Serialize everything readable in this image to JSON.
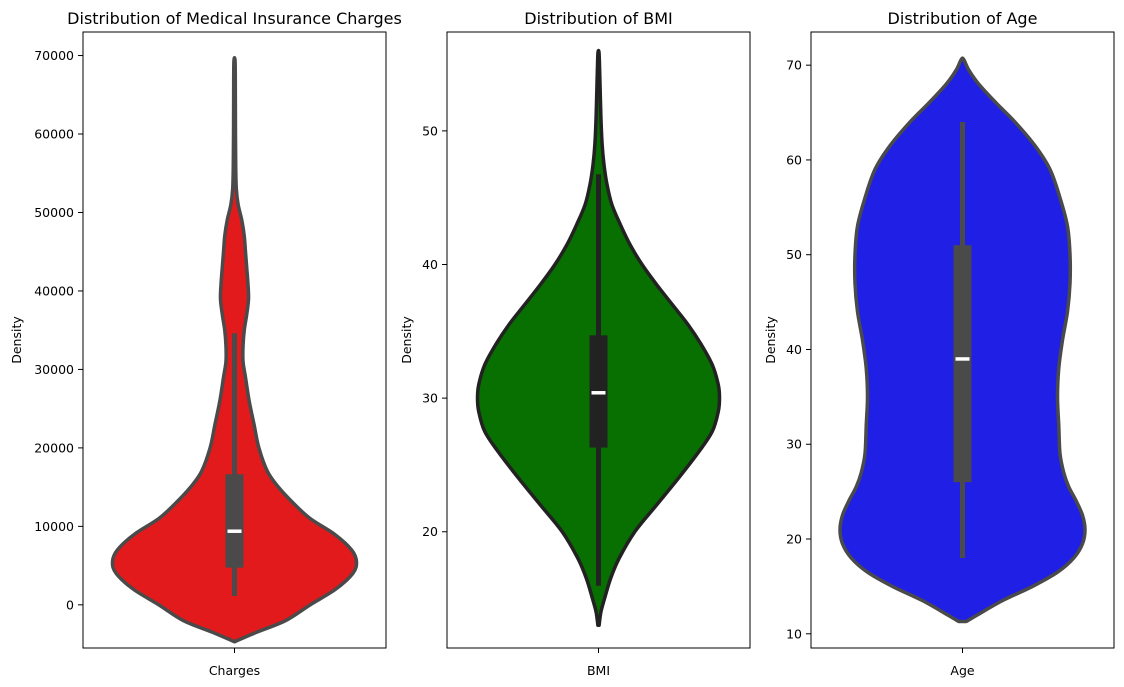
{
  "chart_data": [
    {
      "type": "violin",
      "title": "Distribution of Medical Insurance Charges",
      "xlabel": "Charges",
      "ylabel": "Density",
      "ylim": [
        -5500,
        73000
      ],
      "yticks": [
        0,
        10000,
        20000,
        30000,
        40000,
        50000,
        60000,
        70000
      ],
      "fill_color": "#e31a1c",
      "stats": {
        "min": 1122,
        "q1": 4740,
        "median": 9382,
        "q3": 16640,
        "upper_whisker": 34617,
        "max": 63770
      },
      "density": [
        [
          -4700,
          0.0
        ],
        [
          -3500,
          0.18
        ],
        [
          -2000,
          0.42
        ],
        [
          0,
          0.62
        ],
        [
          2000,
          0.83
        ],
        [
          4000,
          0.97
        ],
        [
          5500,
          1.0
        ],
        [
          7000,
          0.96
        ],
        [
          9000,
          0.82
        ],
        [
          11000,
          0.62
        ],
        [
          13000,
          0.48
        ],
        [
          15000,
          0.36
        ],
        [
          17000,
          0.27
        ],
        [
          20000,
          0.2
        ],
        [
          23000,
          0.16
        ],
        [
          26000,
          0.12
        ],
        [
          29000,
          0.09
        ],
        [
          31000,
          0.07
        ],
        [
          33000,
          0.07
        ],
        [
          35000,
          0.08
        ],
        [
          37000,
          0.1
        ],
        [
          39000,
          0.115
        ],
        [
          41000,
          0.11
        ],
        [
          43000,
          0.1
        ],
        [
          45000,
          0.09
        ],
        [
          47000,
          0.08
        ],
        [
          49000,
          0.06
        ],
        [
          51000,
          0.03
        ],
        [
          53000,
          0.015
        ],
        [
          56000,
          0.01
        ],
        [
          60000,
          0.008
        ],
        [
          65000,
          0.007
        ],
        [
          69200,
          0.005
        ]
      ]
    },
    {
      "type": "violin",
      "title": "Distribution of BMI",
      "xlabel": "BMI",
      "ylabel": "Density",
      "ylim": [
        11.3,
        57.4
      ],
      "yticks": [
        20,
        30,
        40,
        50
      ],
      "fill_color": "#087000",
      "stats": {
        "min": 15.96,
        "q1": 26.3,
        "median": 30.4,
        "q3": 34.7,
        "upper_whisker": 46.75,
        "max": 53.13
      },
      "density": [
        [
          13.0,
          0.005
        ],
        [
          14.0,
          0.02
        ],
        [
          15.0,
          0.05
        ],
        [
          16.5,
          0.1
        ],
        [
          18.0,
          0.17
        ],
        [
          20.0,
          0.3
        ],
        [
          22.0,
          0.48
        ],
        [
          24.0,
          0.66
        ],
        [
          26.0,
          0.83
        ],
        [
          27.5,
          0.94
        ],
        [
          29.0,
          0.99
        ],
        [
          30.0,
          1.0
        ],
        [
          31.0,
          0.99
        ],
        [
          32.5,
          0.94
        ],
        [
          34.0,
          0.85
        ],
        [
          35.5,
          0.74
        ],
        [
          37.0,
          0.61
        ],
        [
          38.5,
          0.48
        ],
        [
          40.0,
          0.36
        ],
        [
          41.5,
          0.26
        ],
        [
          43.0,
          0.18
        ],
        [
          44.5,
          0.11
        ],
        [
          46.0,
          0.07
        ],
        [
          47.5,
          0.045
        ],
        [
          49.0,
          0.03
        ],
        [
          51.0,
          0.02
        ],
        [
          53.0,
          0.014
        ],
        [
          55.0,
          0.008
        ],
        [
          55.9,
          0.004
        ]
      ]
    },
    {
      "type": "violin",
      "title": "Distribution of Age",
      "xlabel": "Age",
      "ylabel": "Density",
      "ylim": [
        8.5,
        73.5
      ],
      "yticks": [
        10,
        20,
        30,
        40,
        50,
        60,
        70
      ],
      "fill_color": "#1f1fe6",
      "stats": {
        "min": 18,
        "q1": 26,
        "median": 39,
        "q3": 51,
        "upper_whisker": 64,
        "max": 64
      },
      "density": [
        [
          11.3,
          0.03
        ],
        [
          12.0,
          0.12
        ],
        [
          13.5,
          0.32
        ],
        [
          15.0,
          0.56
        ],
        [
          16.5,
          0.76
        ],
        [
          18.0,
          0.89
        ],
        [
          19.5,
          0.96
        ],
        [
          21.0,
          0.98
        ],
        [
          22.5,
          0.96
        ],
        [
          24.0,
          0.91
        ],
        [
          25.5,
          0.85
        ],
        [
          27.0,
          0.81
        ],
        [
          29.0,
          0.78
        ],
        [
          32.0,
          0.77
        ],
        [
          35.0,
          0.76
        ],
        [
          38.0,
          0.77
        ],
        [
          41.0,
          0.8
        ],
        [
          44.0,
          0.84
        ],
        [
          47.0,
          0.86
        ],
        [
          50.0,
          0.86
        ],
        [
          53.0,
          0.84
        ],
        [
          56.0,
          0.78
        ],
        [
          59.0,
          0.7
        ],
        [
          61.5,
          0.58
        ],
        [
          64.0,
          0.42
        ],
        [
          66.0,
          0.27
        ],
        [
          68.0,
          0.13
        ],
        [
          69.5,
          0.05
        ],
        [
          70.6,
          0.01
        ]
      ]
    }
  ]
}
